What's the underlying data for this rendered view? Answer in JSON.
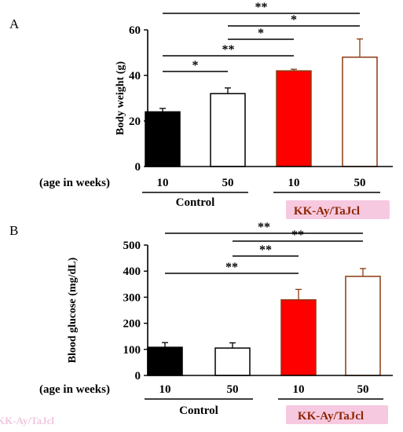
{
  "colors": {
    "control_10": "#000000",
    "control_50": "#ffffff",
    "kk_10": "#ff0000",
    "kk_50": "#ffffff",
    "kk_edge": "#8b3a10",
    "kk_label_text": "#8b2500",
    "kk_label_bg": "#f7c9e0",
    "axis": "#000000"
  },
  "chart_data": [
    {
      "panel": "A",
      "type": "bar",
      "ylabel": "Body weight (g)",
      "ylim": [
        0,
        60
      ],
      "yticks": [
        0,
        20,
        40,
        60
      ],
      "xlabel": "(age in weeks)",
      "categories": [
        "10",
        "50",
        "10",
        "50"
      ],
      "groups": [
        {
          "label": "Control",
          "categories": [
            0,
            1
          ]
        },
        {
          "label": "KK-Ay/TaJcl",
          "categories": [
            2,
            3
          ]
        }
      ],
      "values": [
        24,
        32,
        42,
        48
      ],
      "errors": [
        1.5,
        2.5,
        0.7,
        8
      ],
      "significance": [
        {
          "from": 0,
          "to": 3,
          "label": "**"
        },
        {
          "from": 1,
          "to": 3,
          "label": "*"
        },
        {
          "from": 1,
          "to": 2,
          "label": "*"
        },
        {
          "from": 0,
          "to": 2,
          "label": "**"
        },
        {
          "from": 0,
          "to": 1,
          "label": "*"
        }
      ]
    },
    {
      "panel": "B",
      "type": "bar",
      "ylabel": "Blood glucose (mg/dL)",
      "ylim": [
        0,
        500
      ],
      "yticks": [
        0,
        100,
        200,
        300,
        400,
        500
      ],
      "xlabel": "(age in weeks)",
      "categories": [
        "10",
        "50",
        "10",
        "50"
      ],
      "groups": [
        {
          "label": "Control",
          "categories": [
            0,
            1
          ]
        },
        {
          "label": "KK-Ay/TaJcl",
          "categories": [
            2,
            3
          ]
        }
      ],
      "values": [
        108,
        105,
        290,
        380
      ],
      "errors": [
        18,
        20,
        40,
        30
      ],
      "significance": [
        {
          "from": 0,
          "to": 3,
          "label": "**"
        },
        {
          "from": 1,
          "to": 3,
          "label": "**"
        },
        {
          "from": 1,
          "to": 2,
          "label": "**"
        },
        {
          "from": 0,
          "to": 2,
          "label": "**"
        }
      ]
    }
  ],
  "watermark_text": "KK-Ay/TaJcl"
}
